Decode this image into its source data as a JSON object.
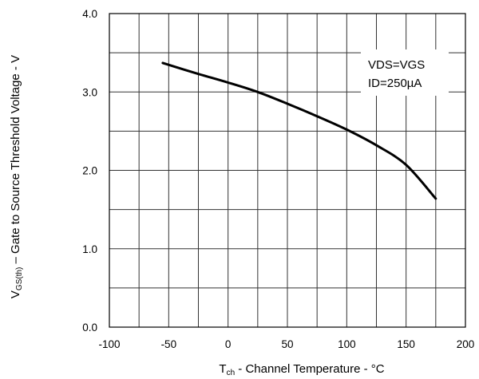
{
  "chart_data": {
    "type": "line",
    "title": "",
    "xlabel": {
      "prefix": "T",
      "sub": "ch",
      "text": " - Channel Temperature - °C"
    },
    "ylabel": {
      "prefix": "V",
      "sub": "GS(th)",
      "text": " – Gate to Source Threshold  Voltage - V"
    },
    "xlim": [
      -100,
      200
    ],
    "ylim": [
      0,
      4
    ],
    "x_ticks": [
      -100,
      -50,
      0,
      50,
      100,
      150,
      200
    ],
    "x_tick_labels": [
      "-100",
      "-50",
      "0",
      "50",
      "100",
      "150",
      "200"
    ],
    "y_ticks": [
      0,
      1,
      2,
      3,
      4
    ],
    "y_tick_labels": [
      "0.0",
      "1.0",
      "2.0",
      "3.0",
      "4.0"
    ],
    "grid": true,
    "annotations": [
      "VDS=VGS",
      "ID=250µA"
    ],
    "series": [
      {
        "x": [
          -55,
          -25,
          0,
          25,
          50,
          75,
          100,
          125,
          150,
          175
        ],
        "y": [
          3.37,
          3.23,
          3.12,
          3.0,
          2.85,
          2.69,
          2.52,
          2.32,
          2.07,
          1.64
        ]
      }
    ]
  }
}
